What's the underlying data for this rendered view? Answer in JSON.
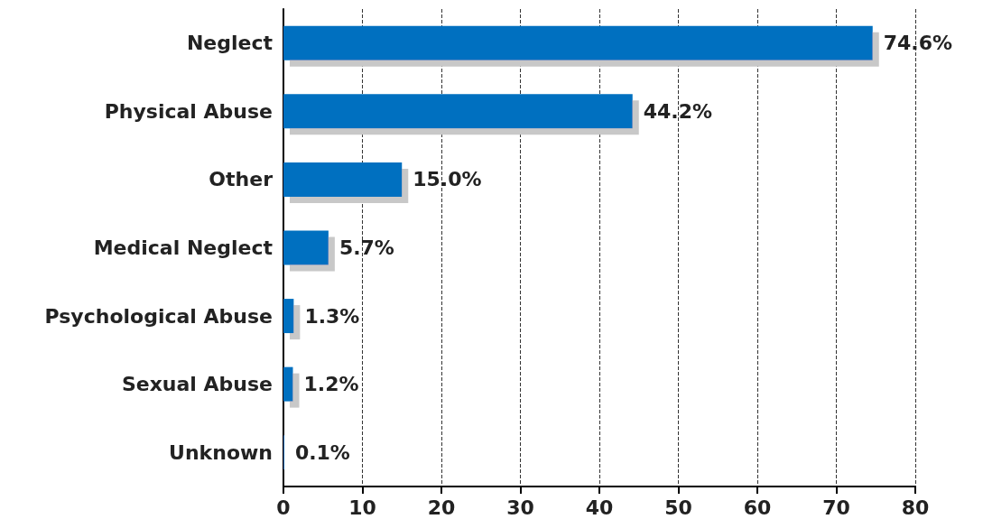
{
  "chart_data": {
    "type": "bar",
    "orientation": "horizontal",
    "categories": [
      "Neglect",
      "Physical Abuse",
      "Other",
      "Medical Neglect",
      "Psychological Abuse",
      "Sexual Abuse",
      "Unknown"
    ],
    "values": [
      74.6,
      44.2,
      15.0,
      5.7,
      1.3,
      1.2,
      0.1
    ],
    "value_labels": [
      "74.6%",
      "44.2%",
      "15.0%",
      "5.7%",
      "1.3%",
      "1.2%",
      "0.1%"
    ],
    "color": "#0070c0",
    "xlim": [
      0,
      80
    ],
    "xticks": [
      0,
      10,
      20,
      30,
      40,
      50,
      60,
      70,
      80
    ],
    "grid": "x"
  }
}
